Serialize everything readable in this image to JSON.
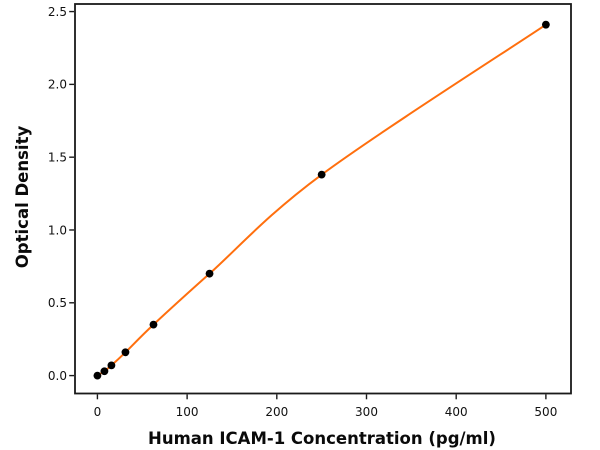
{
  "chart_data": {
    "type": "scatter",
    "title": "",
    "xlabel": "Human ICAM-1 Concentration (pg/ml)",
    "ylabel": "Optical Density",
    "x": [
      0,
      7.8,
      15.6,
      31.25,
      62.5,
      125,
      250,
      500
    ],
    "y": [
      0.0,
      0.03,
      0.07,
      0.16,
      0.35,
      0.7,
      1.38,
      2.41
    ],
    "x_ticks": {
      "values": [
        0,
        100,
        200,
        300,
        400,
        500
      ],
      "labels": [
        "0",
        "100",
        "200",
        "300",
        "400",
        "500"
      ]
    },
    "y_ticks": {
      "values": [
        0.0,
        0.5,
        1.0,
        1.5,
        2.0,
        2.5
      ],
      "labels": [
        "0.0",
        "0.5",
        "1.0",
        "1.5",
        "2.0",
        "2.5"
      ]
    },
    "xlim": [
      -25,
      528
    ],
    "ylim": [
      -0.123,
      2.552
    ],
    "grid": false,
    "legend": "none",
    "curve_style": "smooth fit line through all points",
    "colors": {
      "line": "#ff6f0e",
      "marker": "#000000",
      "axis": "#1a1a1a",
      "background": "#ffffff"
    }
  }
}
